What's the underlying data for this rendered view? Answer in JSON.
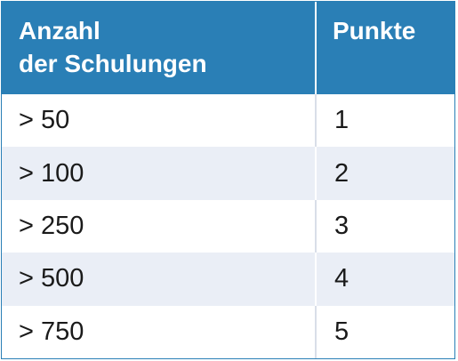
{
  "table": {
    "headers": {
      "col1_line1": "Anzahl",
      "col1_line2": "der Schulungen",
      "col2": "Punkte"
    },
    "rows": [
      {
        "count": "> 50",
        "points": "1"
      },
      {
        "count": "> 100",
        "points": "2"
      },
      {
        "count": "> 250",
        "points": "3"
      },
      {
        "count": "> 500",
        "points": "4"
      },
      {
        "count": "> 750",
        "points": "5"
      }
    ],
    "colors": {
      "header_bg": "#2a7fb6",
      "alt_row_bg": "#eaeef6"
    }
  }
}
